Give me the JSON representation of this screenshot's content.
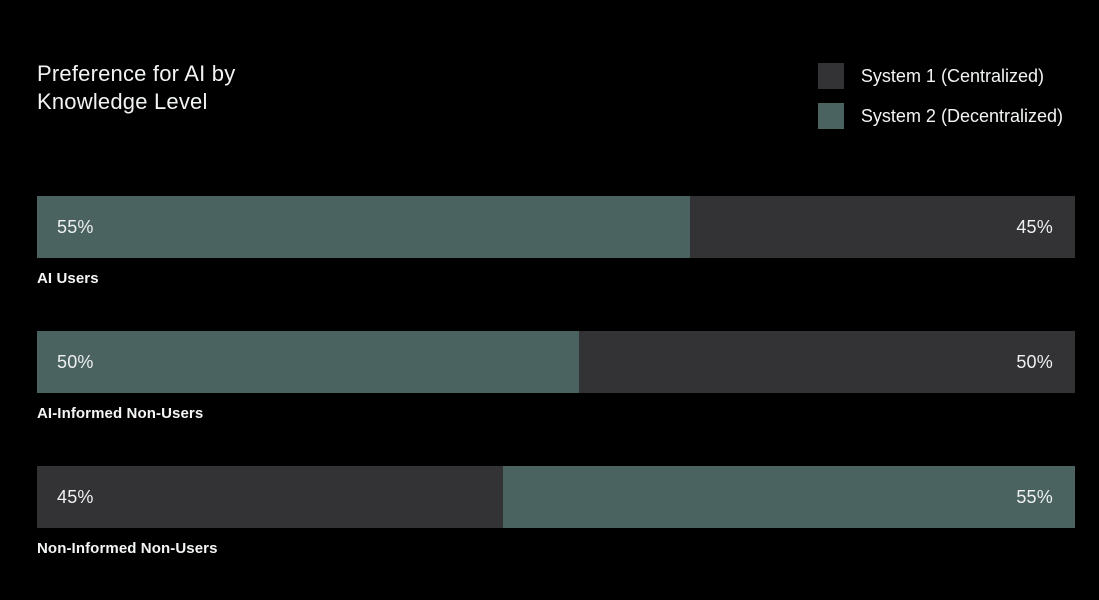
{
  "title": {
    "lines": [
      "Preference for AI by",
      "Knowledge Level"
    ]
  },
  "legend": {
    "items": [
      {
        "key": "system1",
        "label": "System 1 (Centralized)"
      },
      {
        "key": "system2",
        "label": "System 2 (Decentralized)"
      }
    ]
  },
  "colors": {
    "background": "#000000",
    "text": "#f2f4f3",
    "percent_label": "#eef1f0",
    "series": {
      "system1": "#333335",
      "system2": "#4a6361"
    }
  },
  "chart_data": {
    "type": "bar",
    "variant": "horizontal-stacked-100pct",
    "title": "Preference for AI by Knowledge Level",
    "unit": "%",
    "xlim": [
      0,
      100
    ],
    "grid": false,
    "legend_position": "top-right",
    "categories": [
      "AI Users",
      "AI-Informed Non-Users",
      "Non-Informed Non-Users"
    ],
    "series": [
      {
        "key": "system1",
        "name": "System 1 (Centralized)",
        "values": [
          45,
          50,
          45
        ]
      },
      {
        "key": "system2",
        "name": "System 2 (Decentralized)",
        "values": [
          55,
          50,
          55
        ]
      }
    ],
    "rows": [
      {
        "category": "AI Users",
        "segments": [
          {
            "series_key": "system2",
            "series": "System 2 (Decentralized)",
            "value": 55,
            "label": "55%",
            "label_side": "left",
            "visual_width_pct": 62.9
          },
          {
            "series_key": "system1",
            "series": "System 1 (Centralized)",
            "value": 45,
            "label": "45%",
            "label_side": "right",
            "visual_width_pct": 37.1
          }
        ]
      },
      {
        "category": "AI-Informed Non-Users",
        "segments": [
          {
            "series_key": "system2",
            "series": "System 2 (Decentralized)",
            "value": 50,
            "label": "50%",
            "label_side": "left",
            "visual_width_pct": 52.2
          },
          {
            "series_key": "system1",
            "series": "System 1 (Centralized)",
            "value": 50,
            "label": "50%",
            "label_side": "right",
            "visual_width_pct": 47.8
          }
        ]
      },
      {
        "category": "Non-Informed Non-Users",
        "segments": [
          {
            "series_key": "system1",
            "series": "System 1 (Centralized)",
            "value": 45,
            "label": "45%",
            "label_side": "left",
            "visual_width_pct": 44.9
          },
          {
            "series_key": "system2",
            "series": "System 2 (Decentralized)",
            "value": 55,
            "label": "55%",
            "label_side": "right",
            "visual_width_pct": 55.1
          }
        ]
      }
    ]
  }
}
